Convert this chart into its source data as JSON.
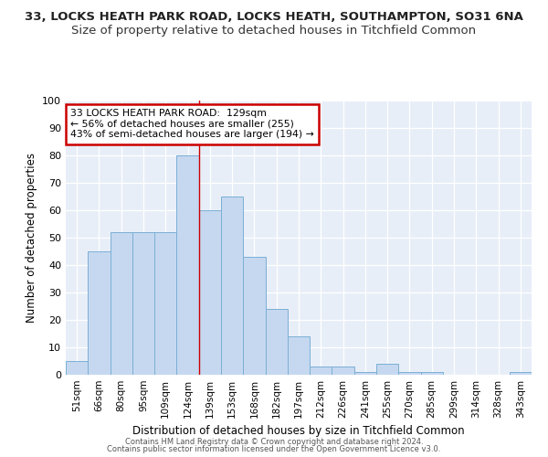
{
  "title1": "33, LOCKS HEATH PARK ROAD, LOCKS HEATH, SOUTHAMPTON, SO31 6NA",
  "title2": "Size of property relative to detached houses in Titchfield Common",
  "xlabel": "Distribution of detached houses by size in Titchfield Common",
  "ylabel": "Number of detached properties",
  "categories": [
    "51sqm",
    "66sqm",
    "80sqm",
    "95sqm",
    "109sqm",
    "124sqm",
    "139sqm",
    "153sqm",
    "168sqm",
    "182sqm",
    "197sqm",
    "212sqm",
    "226sqm",
    "241sqm",
    "255sqm",
    "270sqm",
    "285sqm",
    "299sqm",
    "314sqm",
    "328sqm",
    "343sqm"
  ],
  "values": [
    5,
    45,
    52,
    52,
    52,
    80,
    60,
    65,
    43,
    24,
    14,
    3,
    3,
    1,
    4,
    1,
    1,
    0,
    0,
    0,
    1
  ],
  "bar_color": "#c5d8f0",
  "bar_edge_color": "#7bafd4",
  "vline_x": 5.5,
  "vline_color": "#cc0000",
  "annotation_text": "33 LOCKS HEATH PARK ROAD:  129sqm\n← 56% of detached houses are smaller (255)\n43% of semi-detached houses are larger (194) →",
  "annotation_box_color": "#ffffff",
  "annotation_box_edge": "#cc0000",
  "ylim": [
    0,
    100
  ],
  "footer1": "Contains HM Land Registry data © Crown copyright and database right 2024.",
  "footer2": "Contains public sector information licensed under the Open Government Licence v3.0.",
  "bg_color": "#e8eef8",
  "title1_fontsize": 9.5,
  "title2_fontsize": 9.5
}
